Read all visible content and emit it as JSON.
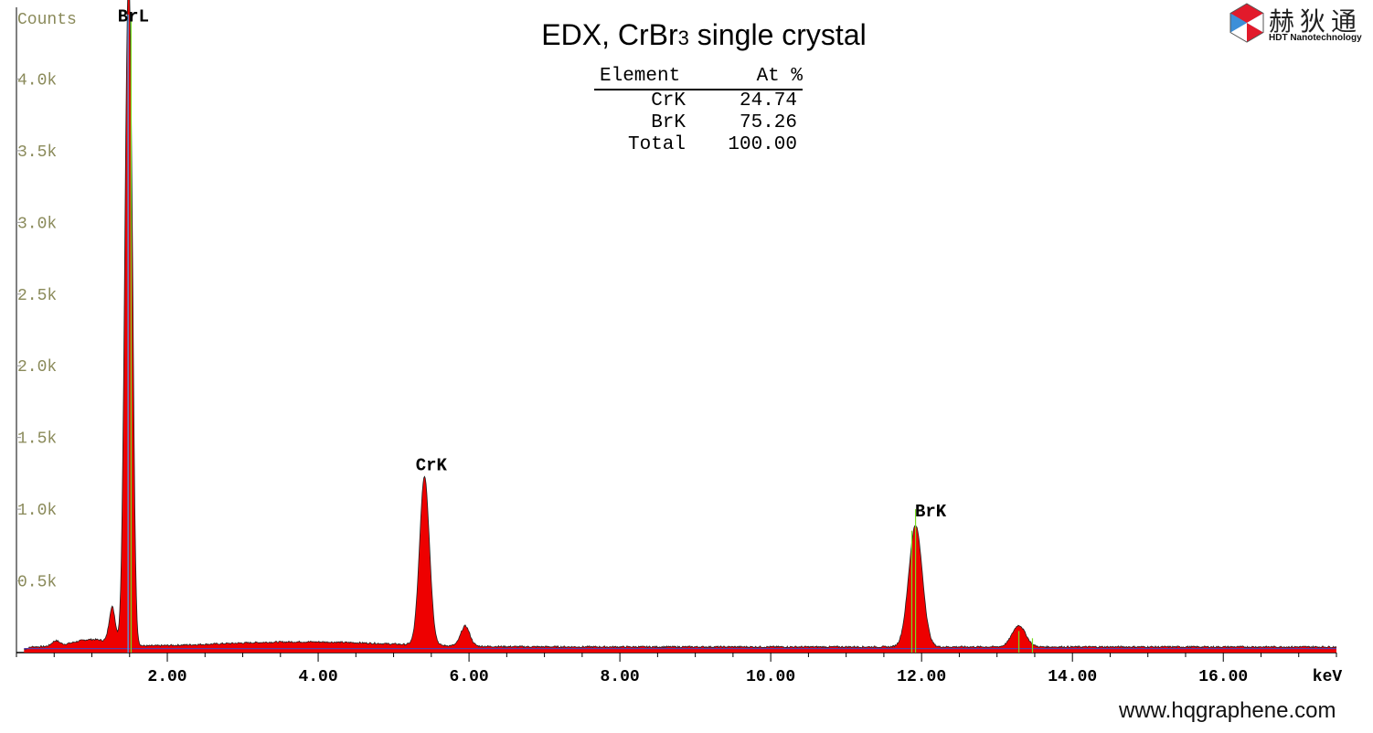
{
  "chart_data": {
    "type": "line",
    "title": "EDX, CrBr",
    "title_subscript": "3",
    "title_suffix": " single crystal",
    "ylabel": "Counts",
    "xlabel": "keV",
    "xlim": [
      0,
      17.5
    ],
    "ylim": [
      0,
      4.5
    ],
    "x_ticks": [
      {
        "value": 2,
        "label": "2.00"
      },
      {
        "value": 4,
        "label": "4.00"
      },
      {
        "value": 6,
        "label": "6.00"
      },
      {
        "value": 8,
        "label": "8.00"
      },
      {
        "value": 10,
        "label": "10.00"
      },
      {
        "value": 12,
        "label": "12.00"
      },
      {
        "value": 14,
        "label": "14.00"
      },
      {
        "value": 16,
        "label": "16.00"
      }
    ],
    "y_ticks": [
      {
        "value": 0.5,
        "label": "0.5k"
      },
      {
        "value": 1.0,
        "label": "1.0k"
      },
      {
        "value": 1.5,
        "label": "1.5k"
      },
      {
        "value": 2.0,
        "label": "2.0k"
      },
      {
        "value": 2.5,
        "label": "2.5k"
      },
      {
        "value": 3.0,
        "label": "3.0k"
      },
      {
        "value": 3.5,
        "label": "3.5k"
      },
      {
        "value": 4.0,
        "label": "4.0k"
      }
    ],
    "background": 0.04,
    "peaks": [
      {
        "x": 0.52,
        "height": 0.035,
        "width": 0.05
      },
      {
        "x": 1.27,
        "height": 0.25,
        "width": 0.04
      },
      {
        "x": 1.48,
        "height": 4.4,
        "width": 0.045
      },
      {
        "x": 1.53,
        "height": 0.9,
        "width": 0.03
      },
      {
        "x": 5.41,
        "height": 1.18,
        "width": 0.065
      },
      {
        "x": 5.95,
        "height": 0.14,
        "width": 0.06
      },
      {
        "x": 11.92,
        "height": 0.85,
        "width": 0.09
      },
      {
        "x": 13.29,
        "height": 0.15,
        "width": 0.09
      }
    ],
    "marker_lines": [
      {
        "x": 1.48,
        "height": 4.45,
        "color": "#44aaff"
      },
      {
        "x": 1.52,
        "height": 4.45,
        "color": "#77dd22"
      },
      {
        "x": 11.92,
        "height": 1.0,
        "color": "#77dd22"
      },
      {
        "x": 11.87,
        "height": 0.85,
        "color": "#77dd22"
      },
      {
        "x": 13.29,
        "height": 0.15,
        "color": "#77dd22"
      },
      {
        "x": 13.47,
        "height": 0.1,
        "color": "#77dd22"
      }
    ],
    "peak_labels": [
      {
        "text": "BrL",
        "x": 1.55,
        "y": 4.35
      },
      {
        "text": "CrK",
        "x": 5.5,
        "y": 1.22
      },
      {
        "text": "BrK",
        "x": 12.12,
        "y": 0.9
      }
    ],
    "colors": {
      "fill": "#ee0000",
      "outline": "#222222",
      "baseline": "#5a3aa8",
      "tick_label": "#8a8a5a",
      "axis": "#000000"
    }
  },
  "results_table": {
    "headers": [
      "Element",
      "At %"
    ],
    "rows": [
      {
        "element": "CrK",
        "value": "24.74"
      },
      {
        "element": "BrK",
        "value": "75.26"
      },
      {
        "element": "Total",
        "value": "100.00"
      }
    ]
  },
  "logo": {
    "name_cn": "赫狄通",
    "name_en": "HDT Nanotechnology",
    "colors": [
      "#e21a2b",
      "#3d8fd8",
      "#ffffff"
    ]
  },
  "website": "www.hqgraphene.com"
}
